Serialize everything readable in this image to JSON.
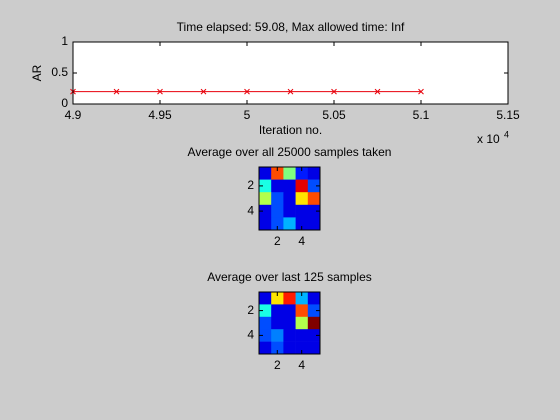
{
  "chart_data": [
    {
      "type": "line",
      "title": "Time elapsed: 59.08, Max allowed time: Inf",
      "xlabel": "Iteration no.",
      "ylabel": "AR",
      "x_exponent": {
        "base": "x 10",
        "power": "4"
      },
      "x": [
        49000,
        49250,
        49500,
        49750,
        50000,
        50250,
        50500,
        50750,
        51000
      ],
      "values": [
        0.2,
        0.2,
        0.2,
        0.2,
        0.2,
        0.2,
        0.2,
        0.2,
        0.2
      ],
      "color": "#e8000b",
      "marker": "x",
      "xlim": [
        49000,
        51500
      ],
      "ylim": [
        0,
        1
      ],
      "xticks": [
        {
          "value": 49000,
          "label": "4.9"
        },
        {
          "value": 49500,
          "label": "4.95"
        },
        {
          "value": 50000,
          "label": "5"
        },
        {
          "value": 50500,
          "label": "5.05"
        },
        {
          "value": 51000,
          "label": "5.1"
        },
        {
          "value": 51500,
          "label": "5.15"
        }
      ],
      "yticks": [
        0,
        0.5,
        1
      ]
    },
    {
      "type": "heatmap",
      "title": "Average over all 25000 samples taken",
      "colormap": "jet",
      "clim": [
        0,
        1
      ],
      "xlim": [
        0.5,
        5.5
      ],
      "ylim": [
        0.5,
        5.5
      ],
      "xticks": [
        2,
        4
      ],
      "yticks": [
        2,
        4
      ],
      "matrix": [
        [
          0.1,
          0.8,
          0.5,
          0.15,
          0.1
        ],
        [
          0.4,
          0.1,
          0.1,
          0.9,
          0.2
        ],
        [
          0.55,
          0.2,
          0.1,
          0.65,
          0.8
        ],
        [
          0.1,
          0.2,
          0.1,
          0.1,
          0.1
        ],
        [
          0.1,
          0.2,
          0.3,
          0.1,
          0.1
        ]
      ]
    },
    {
      "type": "heatmap",
      "title": "Average over last 125 samples",
      "colormap": "jet",
      "clim": [
        0,
        1
      ],
      "xlim": [
        0.5,
        5.5
      ],
      "ylim": [
        0.5,
        5.5
      ],
      "xticks": [
        2,
        4
      ],
      "yticks": [
        2,
        4
      ],
      "matrix": [
        [
          0.1,
          0.65,
          0.85,
          0.3,
          0.1
        ],
        [
          0.4,
          0.1,
          0.1,
          0.8,
          0.2
        ],
        [
          0.2,
          0.1,
          0.1,
          0.55,
          1.0
        ],
        [
          0.2,
          0.25,
          0.1,
          0.1,
          0.1
        ],
        [
          0.1,
          0.2,
          0.1,
          0.1,
          0.1
        ]
      ]
    }
  ]
}
